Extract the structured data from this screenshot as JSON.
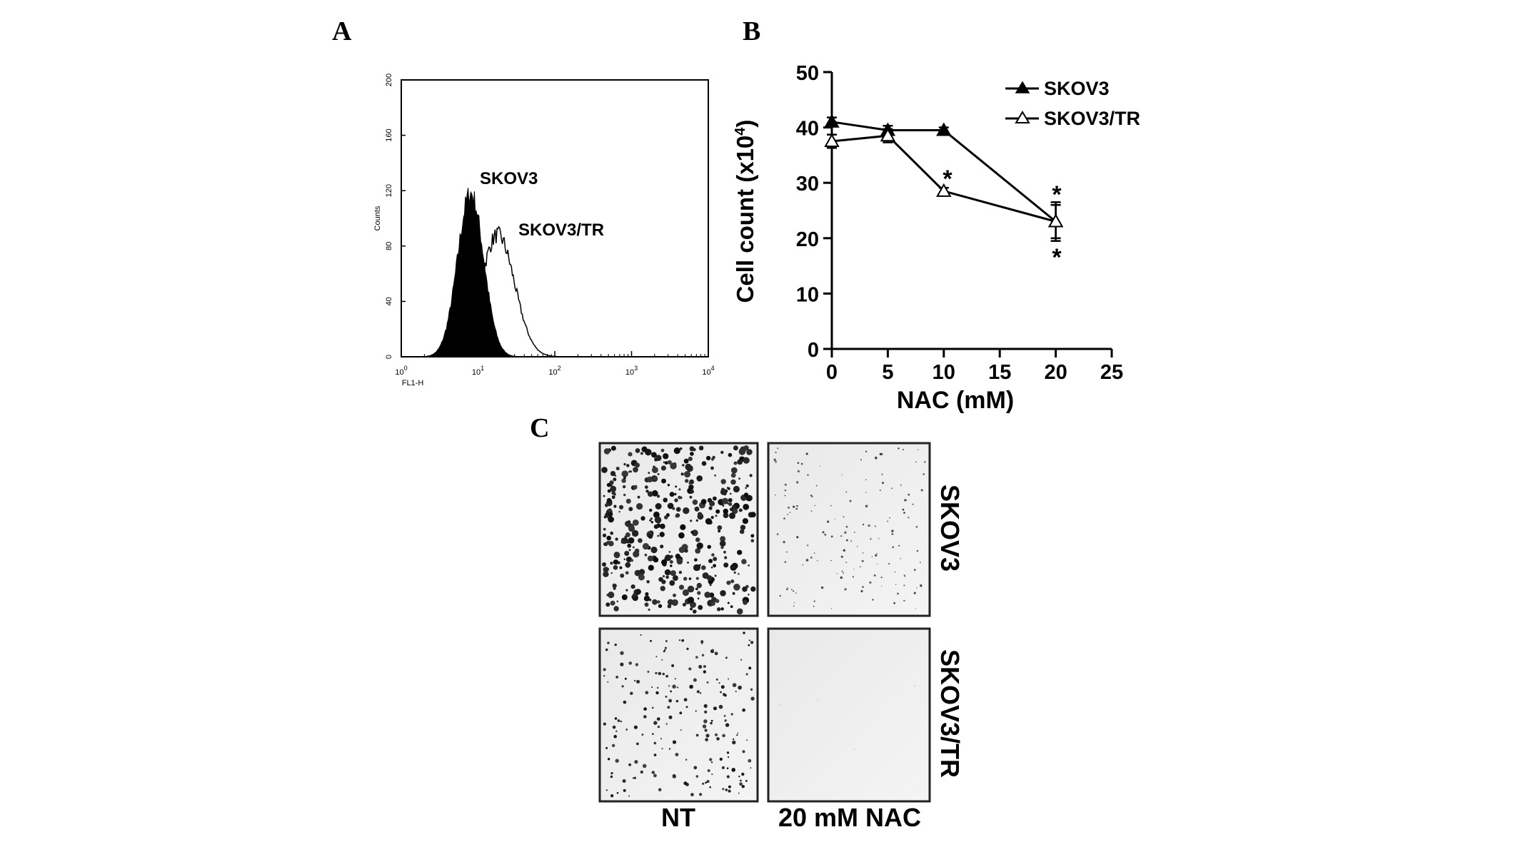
{
  "panels": {
    "a": {
      "letter": "A"
    },
    "b": {
      "letter": "B"
    },
    "c": {
      "letter": "C"
    }
  },
  "chart_data": [
    {
      "id": "A",
      "type": "area",
      "xlabel": "FL1-H",
      "ylabel": "Counts",
      "xscale": "log",
      "xlim": [
        1,
        10000
      ],
      "ylim": [
        0,
        200
      ],
      "xticks": [
        {
          "base": "10",
          "exp": "0",
          "value": 1
        },
        {
          "base": "10",
          "exp": "1",
          "value": 10
        },
        {
          "base": "10",
          "exp": "2",
          "value": 100
        },
        {
          "base": "10",
          "exp": "3",
          "value": 1000
        },
        {
          "base": "10",
          "exp": "4",
          "value": 10000
        }
      ],
      "yticks": [
        "0",
        "40",
        "80",
        "120",
        "160",
        "200"
      ],
      "series": [
        {
          "name": "SKOV3",
          "fill": "#000000",
          "peak_x": 8,
          "peak_y": 118,
          "log_sd": 0.17
        },
        {
          "name": "SKOV3/TR",
          "fill": "none",
          "peak_x": 18,
          "peak_y": 88,
          "log_sd": 0.22
        }
      ],
      "labels": [
        "SKOV3",
        "SKOV3/TR"
      ]
    },
    {
      "id": "B",
      "type": "line",
      "xlabel": "NAC (mM)",
      "ylabel": "Cell count (x10",
      "ylabel_exp": "4",
      "ylabel_close": ")",
      "xlim": [
        0,
        25
      ],
      "ylim": [
        0,
        50
      ],
      "xticks": [
        "0",
        "5",
        "10",
        "15",
        "20",
        "25"
      ],
      "yticks": [
        "0",
        "10",
        "20",
        "30",
        "40",
        "50"
      ],
      "series": [
        {
          "name": "SKOV3",
          "marker": "filled-triangle",
          "x": [
            0,
            5,
            10,
            20
          ],
          "y": [
            41,
            39.5,
            39.5,
            23
          ],
          "err": [
            0.8,
            0.8,
            0.5,
            3.5
          ]
        },
        {
          "name": "SKOV3/TR",
          "marker": "open-triangle",
          "x": [
            0,
            5,
            10,
            20
          ],
          "y": [
            37.5,
            38.5,
            28.5,
            23
          ],
          "err": [
            1.2,
            1.2,
            0.6,
            3.0
          ]
        }
      ],
      "annotations": [
        "*",
        "*",
        "*"
      ]
    }
  ],
  "colony_panel": {
    "columns": [
      "NT",
      "20 mM NAC"
    ],
    "rows": [
      "SKOV3",
      "SKOV3/TR"
    ]
  }
}
